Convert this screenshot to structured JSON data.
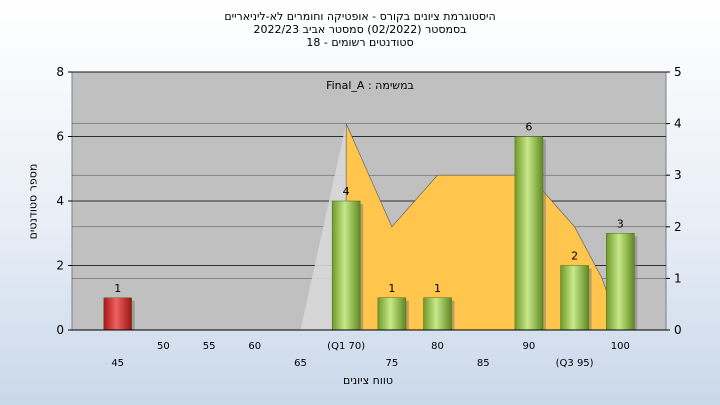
{
  "header": {
    "line1": "היסטוגרמת ציונים בקורס - אופטיקה וחומרים לא-ליניאריים",
    "line2": "בסמסטר  (02/2022)  סמסטר אביב 2022/23",
    "line3": "סטודנטים רשומים - 18"
  },
  "chart_data": {
    "type": "bar",
    "title": "היסטוגרמת ציונים בקורס - אופטיקה וחומרים לא-ליניאריים",
    "subtitle": "בסמסטר  (02/2022)  סמסטר אביב 2022/23",
    "students_label": "סטודנטים רשומים - 18",
    "xlabel": "טווח ציונים",
    "ylabel": "מספר סטודנטים",
    "annotation": "Final_A : במשימה",
    "ylim": [
      0,
      8
    ],
    "y2lim": [
      0,
      5
    ],
    "yticks": [
      0,
      2,
      4,
      6,
      8
    ],
    "y2ticks": [
      0,
      1,
      2,
      3,
      4,
      5
    ],
    "xticks_lower": [
      "45",
      "65",
      "75",
      "85",
      "(Q3 95)"
    ],
    "xticks_upper": [
      "50",
      "55",
      "60",
      "(Q1 70)",
      "80",
      "90",
      "100"
    ],
    "x_range": [
      40,
      105
    ],
    "bars": [
      {
        "x": 45,
        "value": 1,
        "label": "1",
        "color": "#d42a2a"
      },
      {
        "x": 70,
        "value": 4,
        "label": "4",
        "color": "#8cbf3c"
      },
      {
        "x": 75,
        "value": 1,
        "label": "1",
        "color": "#8cbf3c"
      },
      {
        "x": 80,
        "value": 1,
        "label": "1",
        "color": "#8cbf3c"
      },
      {
        "x": 90,
        "value": 6,
        "label": "6",
        "color": "#8cbf3c"
      },
      {
        "x": 95,
        "value": 2,
        "label": "2",
        "color": "#8cbf3c"
      },
      {
        "x": 100,
        "value": 3,
        "label": "3",
        "color": "#8cbf3c"
      }
    ],
    "distribution_curve": {
      "color": "#ffc54d",
      "points": [
        [
          70,
          4
        ],
        [
          75,
          2
        ],
        [
          80,
          3
        ],
        [
          85,
          3
        ],
        [
          90,
          3
        ],
        [
          95,
          2
        ],
        [
          98,
          1
        ],
        [
          100,
          0
        ]
      ]
    },
    "grid": true
  }
}
